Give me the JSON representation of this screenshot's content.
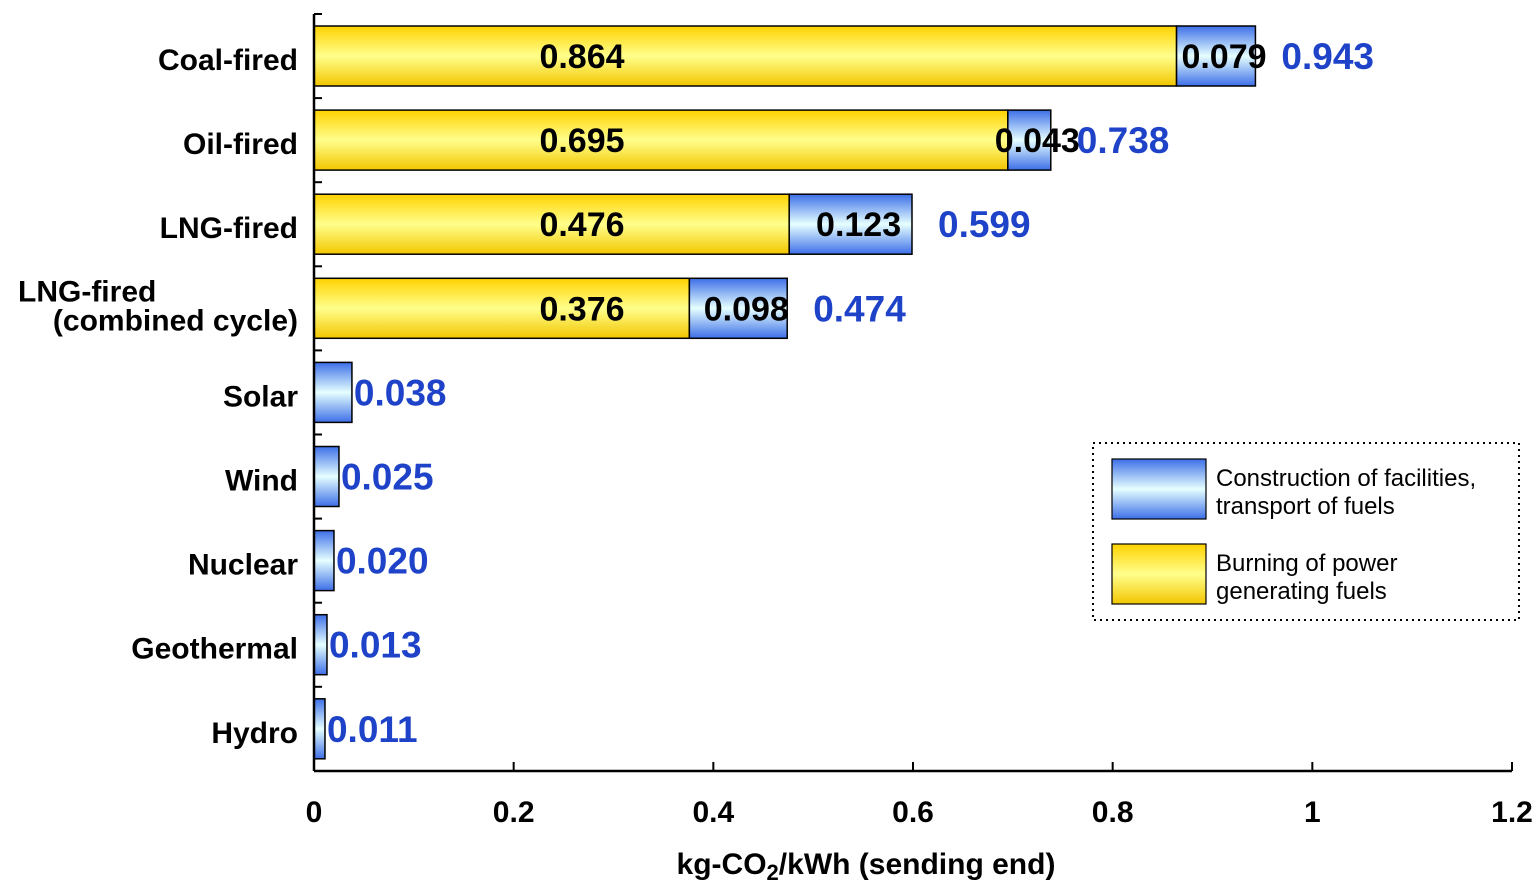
{
  "chart_data": {
    "type": "bar",
    "orientation": "horizontal",
    "stacked": true,
    "categories": [
      [
        "Coal-fired"
      ],
      [
        "Oil-fired"
      ],
      [
        "LNG-fired"
      ],
      [
        "LNG-fired",
        "(combined cycle)"
      ],
      [
        "Solar"
      ],
      [
        "Wind"
      ],
      [
        "Nuclear"
      ],
      [
        "Geothermal"
      ],
      [
        "Hydro"
      ]
    ],
    "series": [
      {
        "name": "Burning of power generating fuels",
        "values": [
          0.864,
          0.695,
          0.476,
          0.376,
          0,
          0,
          0,
          0,
          0
        ],
        "labels": [
          "0.864",
          "0.695",
          "0.476",
          "0.376",
          "",
          "",
          "",
          "",
          ""
        ],
        "color_top": "#ffd200",
        "color_mid": "#ffff8c",
        "color_bottom": "#f2c600"
      },
      {
        "name": "Construction of facilities, transport of fuels",
        "values": [
          0.079,
          0.043,
          0.123,
          0.098,
          0.038,
          0.025,
          0.02,
          0.013,
          0.011
        ],
        "labels": [
          "0.079",
          "0.043",
          "0.123",
          "0.098",
          "",
          "",
          "",
          "",
          ""
        ],
        "color_top": "#3d6fe8",
        "color_mid": "#e6ffff",
        "color_bottom": "#3d6fe8"
      }
    ],
    "totals": [
      "0.943",
      "0.738",
      "0.599",
      "0.474",
      "0.038",
      "0.025",
      "0.020",
      "0.013",
      "0.011"
    ],
    "total_label_color": "#1f43c8",
    "xlabel_main": "kg-CO",
    "xlabel_sub": "2",
    "xlabel_rest": "/kWh (sending end)",
    "xlim": [
      0,
      1.2
    ],
    "xticks": [
      0,
      0.2,
      0.4,
      0.6,
      0.8,
      1,
      1.2
    ],
    "xtick_labels": [
      "0",
      "0.2",
      "0.4",
      "0.6",
      "0.8",
      "1",
      "1.2"
    ],
    "grid": false,
    "legend": {
      "placement": "right",
      "items": [
        {
          "series": 1,
          "lines": [
            "Construction of facilities,",
            "transport of fuels"
          ]
        },
        {
          "series": 0,
          "lines": [
            "Burning of power",
            "generating fuels"
          ]
        }
      ]
    }
  }
}
